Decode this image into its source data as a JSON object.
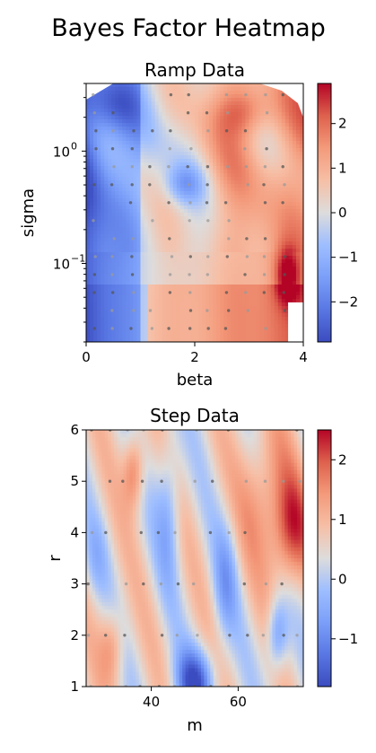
{
  "figure": {
    "title": "Bayes Factor Heatmap"
  },
  "chart_data": [
    {
      "type": "heatmap",
      "title": "Ramp Data",
      "xlabel": "beta",
      "ylabel": "sigma",
      "xlim": [
        0,
        4
      ],
      "ylim": [
        0.02,
        4.0
      ],
      "yscale": "log",
      "xticks": [
        0,
        2,
        4
      ],
      "xtick_labels": [
        "0",
        "2",
        "4"
      ],
      "ytick_labels": [
        {
          "base": "10",
          "exp": "0"
        },
        {
          "base": "10",
          "exp": "−1"
        }
      ],
      "ytick_values": [
        1.0,
        0.1
      ],
      "colormap": "coolwarm",
      "colorbar": {
        "vmin": -2.9,
        "vmax": 2.9,
        "ticks": [
          2,
          1,
          0,
          -1,
          -2
        ],
        "tick_labels": [
          "2",
          "1",
          "0",
          "−1",
          "−2"
        ]
      },
      "masked_region": "upper corners (no samples)",
      "sample_points": "grid of grey dots",
      "grid": false
    },
    {
      "type": "heatmap",
      "title": "Step Data",
      "xlabel": "m",
      "ylabel": "r",
      "xlim": [
        25,
        75
      ],
      "ylim": [
        1,
        6
      ],
      "xticks": [
        40,
        60
      ],
      "xtick_labels": [
        "40",
        "60"
      ],
      "yticks": [
        1,
        2,
        3,
        4,
        5,
        6
      ],
      "ytick_labels": [
        "1",
        "2",
        "3",
        "4",
        "5",
        "6"
      ],
      "colormap": "coolwarm",
      "colorbar": {
        "vmin": -1.8,
        "vmax": 2.5,
        "ticks": [
          2,
          1,
          0,
          -1
        ],
        "tick_labels": [
          "2",
          "1",
          "0",
          "−1"
        ]
      },
      "sample_points": "grid of grey dots",
      "grid": false
    }
  ]
}
